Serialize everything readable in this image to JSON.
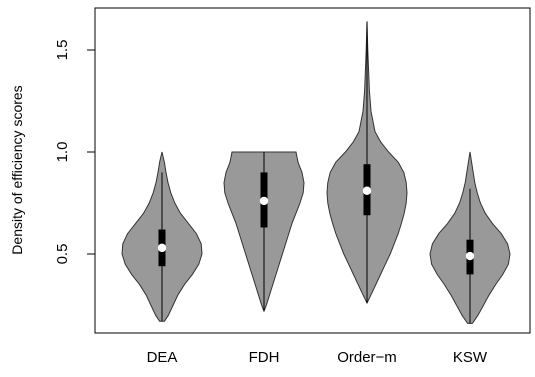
{
  "chart_data": {
    "type": "violin",
    "title": "",
    "xlabel": "",
    "ylabel": "Density of efficiency scores",
    "ylim": [
      0.1,
      1.65
    ],
    "yticks": [
      0.5,
      1.0,
      1.5
    ],
    "ytick_labels": [
      "0.5",
      "1.0",
      "1.5"
    ],
    "categories": [
      "DEA",
      "FDH",
      "Order−m",
      "KSW"
    ],
    "grid": false,
    "legend": "none",
    "colors": {
      "violin_fill": "#999999",
      "outline": "#333333",
      "box": "#000000",
      "median": "#ffffff"
    },
    "series": [
      {
        "category": "DEA",
        "min": 0.17,
        "max": 1.0,
        "whisker_low": 0.17,
        "whisker_high": 0.9,
        "q1": 0.44,
        "median": 0.53,
        "q3": 0.62,
        "density": [
          [
            0.17,
            0.06
          ],
          [
            0.2,
            0.16
          ],
          [
            0.25,
            0.28
          ],
          [
            0.3,
            0.4
          ],
          [
            0.35,
            0.56
          ],
          [
            0.4,
            0.76
          ],
          [
            0.45,
            0.92
          ],
          [
            0.5,
            1.0
          ],
          [
            0.55,
            0.98
          ],
          [
            0.6,
            0.86
          ],
          [
            0.65,
            0.66
          ],
          [
            0.7,
            0.46
          ],
          [
            0.75,
            0.32
          ],
          [
            0.8,
            0.22
          ],
          [
            0.85,
            0.15
          ],
          [
            0.9,
            0.1
          ],
          [
            0.95,
            0.06
          ],
          [
            1.0,
            0.0
          ]
        ]
      },
      {
        "category": "FDH",
        "min": 0.22,
        "max": 1.0,
        "whisker_low": 0.22,
        "whisker_high": 1.0,
        "q1": 0.63,
        "median": 0.76,
        "q3": 0.9,
        "density": [
          [
            0.22,
            0.0
          ],
          [
            0.25,
            0.06
          ],
          [
            0.3,
            0.14
          ],
          [
            0.35,
            0.22
          ],
          [
            0.4,
            0.3
          ],
          [
            0.45,
            0.38
          ],
          [
            0.5,
            0.46
          ],
          [
            0.55,
            0.54
          ],
          [
            0.6,
            0.62
          ],
          [
            0.65,
            0.7
          ],
          [
            0.7,
            0.8
          ],
          [
            0.75,
            0.9
          ],
          [
            0.8,
            0.98
          ],
          [
            0.85,
            1.0
          ],
          [
            0.9,
            0.95
          ],
          [
            0.95,
            0.85
          ],
          [
            1.0,
            0.8
          ]
        ]
      },
      {
        "category": "Order−m",
        "min": 0.26,
        "max": 1.64,
        "whisker_low": 0.26,
        "whisker_high": 1.64,
        "q1": 0.69,
        "median": 0.81,
        "q3": 0.94,
        "density": [
          [
            0.26,
            0.0
          ],
          [
            0.3,
            0.1
          ],
          [
            0.35,
            0.22
          ],
          [
            0.4,
            0.34
          ],
          [
            0.45,
            0.46
          ],
          [
            0.5,
            0.58
          ],
          [
            0.55,
            0.68
          ],
          [
            0.6,
            0.78
          ],
          [
            0.65,
            0.86
          ],
          [
            0.7,
            0.93
          ],
          [
            0.75,
            0.98
          ],
          [
            0.8,
            1.0
          ],
          [
            0.85,
            0.98
          ],
          [
            0.9,
            0.92
          ],
          [
            0.95,
            0.78
          ],
          [
            1.0,
            0.54
          ],
          [
            1.05,
            0.34
          ],
          [
            1.1,
            0.2
          ],
          [
            1.2,
            0.1
          ],
          [
            1.3,
            0.06
          ],
          [
            1.4,
            0.04
          ],
          [
            1.5,
            0.02
          ],
          [
            1.64,
            0.0
          ]
        ]
      },
      {
        "category": "KSW",
        "min": 0.16,
        "max": 1.0,
        "whisker_low": 0.16,
        "whisker_high": 0.82,
        "q1": 0.4,
        "median": 0.49,
        "q3": 0.57,
        "density": [
          [
            0.16,
            0.06
          ],
          [
            0.2,
            0.2
          ],
          [
            0.25,
            0.34
          ],
          [
            0.3,
            0.48
          ],
          [
            0.35,
            0.64
          ],
          [
            0.4,
            0.82
          ],
          [
            0.45,
            0.96
          ],
          [
            0.5,
            1.0
          ],
          [
            0.55,
            0.94
          ],
          [
            0.6,
            0.78
          ],
          [
            0.65,
            0.56
          ],
          [
            0.7,
            0.38
          ],
          [
            0.75,
            0.26
          ],
          [
            0.8,
            0.18
          ],
          [
            0.85,
            0.12
          ],
          [
            0.9,
            0.08
          ],
          [
            0.95,
            0.04
          ],
          [
            1.0,
            0.0
          ]
        ]
      }
    ]
  }
}
